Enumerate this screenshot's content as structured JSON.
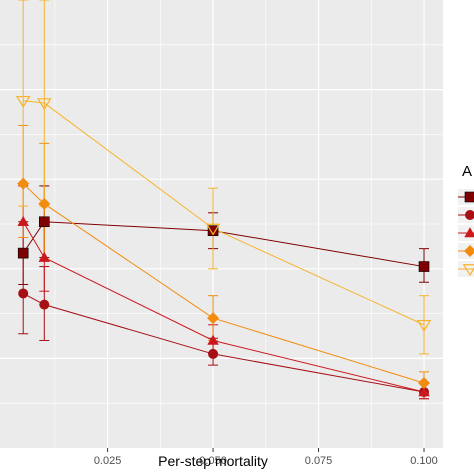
{
  "chart_data": {
    "type": "line",
    "title": "",
    "xlabel": "Per-step mortality",
    "ylabel": "",
    "xlim": [
      -0.0005,
      0.1045
    ],
    "ylim": [
      0.0,
      1.0
    ],
    "x_ticks": [
      {
        "value": 0.025,
        "label": "0.025"
      },
      {
        "value": 0.05,
        "label": "0.050"
      },
      {
        "value": 0.075,
        "label": "0.075"
      },
      {
        "value": 0.1,
        "label": "0.100"
      }
    ],
    "grid": true,
    "legend": {
      "title": "A",
      "position": "right"
    },
    "series": [
      {
        "marker": "square",
        "color": "#7f0000",
        "points": [
          {
            "x": 0.005,
            "y": 0.435,
            "lo": 0.365,
            "hi": 0.505
          },
          {
            "x": 0.01,
            "y": 0.505,
            "lo": 0.425,
            "hi": 0.585
          },
          {
            "x": 0.05,
            "y": 0.485,
            "lo": 0.445,
            "hi": 0.525
          },
          {
            "x": 0.1,
            "y": 0.405,
            "lo": 0.37,
            "hi": 0.445
          }
        ]
      },
      {
        "marker": "circle",
        "color": "#a50f15",
        "points": [
          {
            "x": 0.005,
            "y": 0.345,
            "lo": 0.255,
            "hi": 0.43
          },
          {
            "x": 0.01,
            "y": 0.32,
            "lo": 0.24,
            "hi": 0.405
          },
          {
            "x": 0.05,
            "y": 0.21,
            "lo": 0.185,
            "hi": 0.245
          },
          {
            "x": 0.1,
            "y": 0.125,
            "lo": 0.11,
            "hi": 0.145
          }
        ]
      },
      {
        "marker": "triangle",
        "color": "#cb181d",
        "points": [
          {
            "x": 0.005,
            "y": 0.505,
            "lo": 0.425,
            "hi": 0.585
          },
          {
            "x": 0.01,
            "y": 0.425,
            "lo": 0.35,
            "hi": 0.5
          },
          {
            "x": 0.05,
            "y": 0.24,
            "lo": 0.21,
            "hi": 0.275
          },
          {
            "x": 0.1,
            "y": 0.125,
            "lo": 0.11,
            "hi": 0.145
          }
        ]
      },
      {
        "marker": "diamond",
        "color": "#f18c0e",
        "points": [
          {
            "x": 0.005,
            "y": 0.59,
            "lo": 0.47,
            "hi": 0.72
          },
          {
            "x": 0.01,
            "y": 0.545,
            "lo": 0.42,
            "hi": 0.68
          },
          {
            "x": 0.05,
            "y": 0.29,
            "lo": 0.24,
            "hi": 0.34
          },
          {
            "x": 0.1,
            "y": 0.145,
            "lo": 0.12,
            "hi": 0.17
          }
        ]
      },
      {
        "marker": "triangle-down",
        "color": "#f7b32b",
        "points": [
          {
            "x": 0.005,
            "y": 0.775,
            "lo": 0.54,
            "hi": 1.0
          },
          {
            "x": 0.01,
            "y": 0.77,
            "lo": 0.54,
            "hi": 1.0
          },
          {
            "x": 0.05,
            "y": 0.49,
            "lo": 0.4,
            "hi": 0.58
          },
          {
            "x": 0.1,
            "y": 0.275,
            "lo": 0.21,
            "hi": 0.34
          }
        ]
      }
    ]
  }
}
